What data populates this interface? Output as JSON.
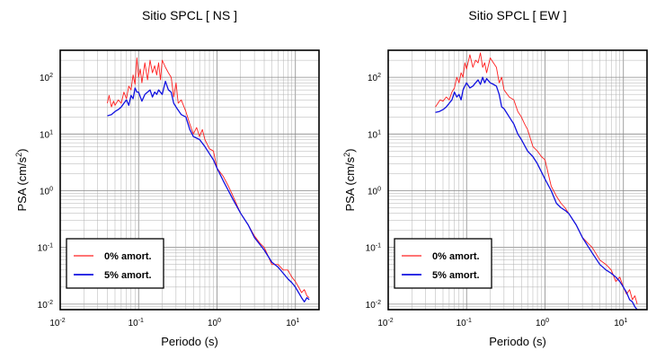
{
  "chart_data": [
    {
      "type": "line",
      "title": "Sitio SPCL [ NS ]",
      "xlabel": "Periodo (s)",
      "ylabel_base": "PSA (cm/s",
      "ylabel_exp": "2",
      "ylabel_close": ")",
      "x_scale": "log",
      "y_scale": "log",
      "xlim": [
        0.01,
        20
      ],
      "ylim": [
        0.008,
        300
      ],
      "grid": true,
      "x_ticks": [
        {
          "value": 0.01,
          "base": "10",
          "exp": "-2"
        },
        {
          "value": 0.1,
          "base": "10",
          "exp": "-1"
        },
        {
          "value": 1,
          "base": "10",
          "exp": "0"
        },
        {
          "value": 10,
          "base": "10",
          "exp": "1"
        }
      ],
      "y_ticks": [
        {
          "value": 0.01,
          "base": "10",
          "exp": "-2"
        },
        {
          "value": 0.1,
          "base": "10",
          "exp": "-1"
        },
        {
          "value": 1,
          "base": "10",
          "exp": "0"
        },
        {
          "value": 10,
          "base": "10",
          "exp": "1"
        },
        {
          "value": 100,
          "base": "10",
          "exp": "2"
        }
      ],
      "legend_placement": "lower-left",
      "series": [
        {
          "name": "0% amort.",
          "color": "#ff2020",
          "x": [
            0.04,
            0.042,
            0.045,
            0.048,
            0.05,
            0.055,
            0.06,
            0.065,
            0.07,
            0.075,
            0.08,
            0.085,
            0.09,
            0.095,
            0.1,
            0.105,
            0.11,
            0.12,
            0.13,
            0.14,
            0.15,
            0.16,
            0.17,
            0.18,
            0.19,
            0.2,
            0.22,
            0.24,
            0.26,
            0.28,
            0.3,
            0.32,
            0.35,
            0.38,
            0.4,
            0.45,
            0.5,
            0.55,
            0.6,
            0.65,
            0.7,
            0.8,
            0.9,
            1.0,
            1.2,
            1.4,
            1.6,
            1.8,
            2.0,
            2.5,
            3.0,
            3.5,
            4.0,
            4.5,
            5.0,
            6.0,
            7.0,
            8.0,
            9.0,
            10,
            11,
            12,
            13,
            14,
            15
          ],
          "y": [
            35,
            48,
            30,
            38,
            32,
            40,
            35,
            55,
            42,
            70,
            60,
            110,
            75,
            220,
            100,
            140,
            80,
            180,
            90,
            200,
            120,
            160,
            110,
            180,
            90,
            200,
            150,
            120,
            100,
            45,
            80,
            35,
            40,
            30,
            25,
            15,
            10,
            13,
            9,
            12,
            8,
            5.5,
            5,
            2.5,
            1.8,
            1.2,
            0.8,
            0.55,
            0.4,
            0.25,
            0.16,
            0.12,
            0.1,
            0.07,
            0.05,
            0.05,
            0.04,
            0.04,
            0.03,
            0.025,
            0.02,
            0.016,
            0.018,
            0.014,
            0.013
          ]
        },
        {
          "name": "5% amort.",
          "color": "#1010e0",
          "x": [
            0.04,
            0.045,
            0.05,
            0.055,
            0.06,
            0.065,
            0.07,
            0.075,
            0.08,
            0.085,
            0.09,
            0.095,
            0.1,
            0.11,
            0.12,
            0.13,
            0.14,
            0.15,
            0.16,
            0.17,
            0.18,
            0.2,
            0.22,
            0.24,
            0.26,
            0.28,
            0.3,
            0.35,
            0.4,
            0.45,
            0.5,
            0.6,
            0.7,
            0.8,
            0.9,
            1.0,
            1.2,
            1.4,
            1.6,
            2.0,
            2.5,
            3.0,
            4.0,
            5.0,
            6.0,
            7.0,
            8.0,
            9.0,
            10,
            11,
            12,
            13,
            14,
            15
          ],
          "y": [
            21,
            22,
            25,
            27,
            30,
            35,
            40,
            32,
            48,
            42,
            65,
            55,
            55,
            38,
            50,
            55,
            60,
            45,
            55,
            50,
            60,
            50,
            85,
            60,
            55,
            35,
            30,
            22,
            20,
            12,
            9,
            8,
            6,
            4.5,
            3.5,
            2.5,
            1.5,
            1.0,
            0.7,
            0.4,
            0.25,
            0.15,
            0.09,
            0.055,
            0.045,
            0.035,
            0.028,
            0.024,
            0.02,
            0.016,
            0.013,
            0.011,
            0.013,
            0.012
          ]
        }
      ]
    },
    {
      "type": "line",
      "title": "Sitio SPCL [ EW ]",
      "xlabel": "Periodo (s)",
      "ylabel_base": "PSA (cm/s",
      "ylabel_exp": "2",
      "ylabel_close": ")",
      "x_scale": "log",
      "y_scale": "log",
      "xlim": [
        0.01,
        20
      ],
      "ylim": [
        0.008,
        300
      ],
      "grid": true,
      "x_ticks": [
        {
          "value": 0.01,
          "base": "10",
          "exp": "-2"
        },
        {
          "value": 0.1,
          "base": "10",
          "exp": "-1"
        },
        {
          "value": 1,
          "base": "10",
          "exp": "0"
        },
        {
          "value": 10,
          "base": "10",
          "exp": "1"
        }
      ],
      "y_ticks": [
        {
          "value": 0.01,
          "base": "10",
          "exp": "-2"
        },
        {
          "value": 0.1,
          "base": "10",
          "exp": "-1"
        },
        {
          "value": 1,
          "base": "10",
          "exp": "0"
        },
        {
          "value": 10,
          "base": "10",
          "exp": "1"
        },
        {
          "value": 100,
          "base": "10",
          "exp": "2"
        }
      ],
      "legend_placement": "lower-left",
      "series": [
        {
          "name": "0% amort.",
          "color": "#ff2020",
          "x": [
            0.04,
            0.043,
            0.046,
            0.05,
            0.055,
            0.06,
            0.065,
            0.07,
            0.075,
            0.08,
            0.085,
            0.09,
            0.095,
            0.1,
            0.11,
            0.12,
            0.13,
            0.14,
            0.15,
            0.16,
            0.17,
            0.18,
            0.2,
            0.22,
            0.24,
            0.26,
            0.28,
            0.3,
            0.35,
            0.4,
            0.45,
            0.5,
            0.55,
            0.6,
            0.7,
            0.8,
            0.9,
            1.0,
            1.1,
            1.2,
            1.4,
            1.6,
            1.8,
            2.0,
            2.5,
            3.0,
            3.5,
            4.0,
            5.0,
            6.0,
            7.0,
            8.0,
            9.0,
            10,
            11,
            12,
            13,
            14,
            15
          ],
          "y": [
            30,
            35,
            40,
            38,
            45,
            40,
            55,
            65,
            100,
            80,
            120,
            100,
            180,
            140,
            250,
            150,
            200,
            180,
            270,
            150,
            180,
            120,
            220,
            180,
            150,
            80,
            100,
            60,
            45,
            40,
            25,
            20,
            15,
            12,
            6,
            5,
            4,
            3.5,
            2,
            1.2,
            0.8,
            0.6,
            0.5,
            0.4,
            0.25,
            0.15,
            0.12,
            0.1,
            0.06,
            0.05,
            0.04,
            0.025,
            0.03,
            0.02,
            0.015,
            0.018,
            0.012,
            0.014,
            0.01
          ]
        },
        {
          "name": "5% amort.",
          "color": "#1010e0",
          "x": [
            0.04,
            0.045,
            0.05,
            0.055,
            0.06,
            0.065,
            0.07,
            0.075,
            0.08,
            0.085,
            0.09,
            0.095,
            0.1,
            0.11,
            0.12,
            0.13,
            0.14,
            0.15,
            0.16,
            0.17,
            0.18,
            0.2,
            0.22,
            0.24,
            0.26,
            0.28,
            0.3,
            0.35,
            0.4,
            0.45,
            0.5,
            0.6,
            0.7,
            0.8,
            1.0,
            1.2,
            1.4,
            1.6,
            1.8,
            2.0,
            2.5,
            3.0,
            4.0,
            5.0,
            6.0,
            7.0,
            8.0,
            9.0,
            10,
            11,
            12,
            13,
            14,
            15
          ],
          "y": [
            24,
            25,
            27,
            30,
            35,
            40,
            55,
            45,
            50,
            40,
            60,
            70,
            80,
            65,
            70,
            80,
            90,
            75,
            100,
            80,
            95,
            80,
            75,
            70,
            50,
            30,
            28,
            20,
            15,
            10,
            8,
            5,
            4,
            3,
            1.6,
            1.0,
            0.6,
            0.5,
            0.45,
            0.4,
            0.25,
            0.15,
            0.08,
            0.05,
            0.04,
            0.035,
            0.03,
            0.025,
            0.02,
            0.016,
            0.012,
            0.011,
            0.009,
            0.008
          ]
        }
      ]
    }
  ]
}
